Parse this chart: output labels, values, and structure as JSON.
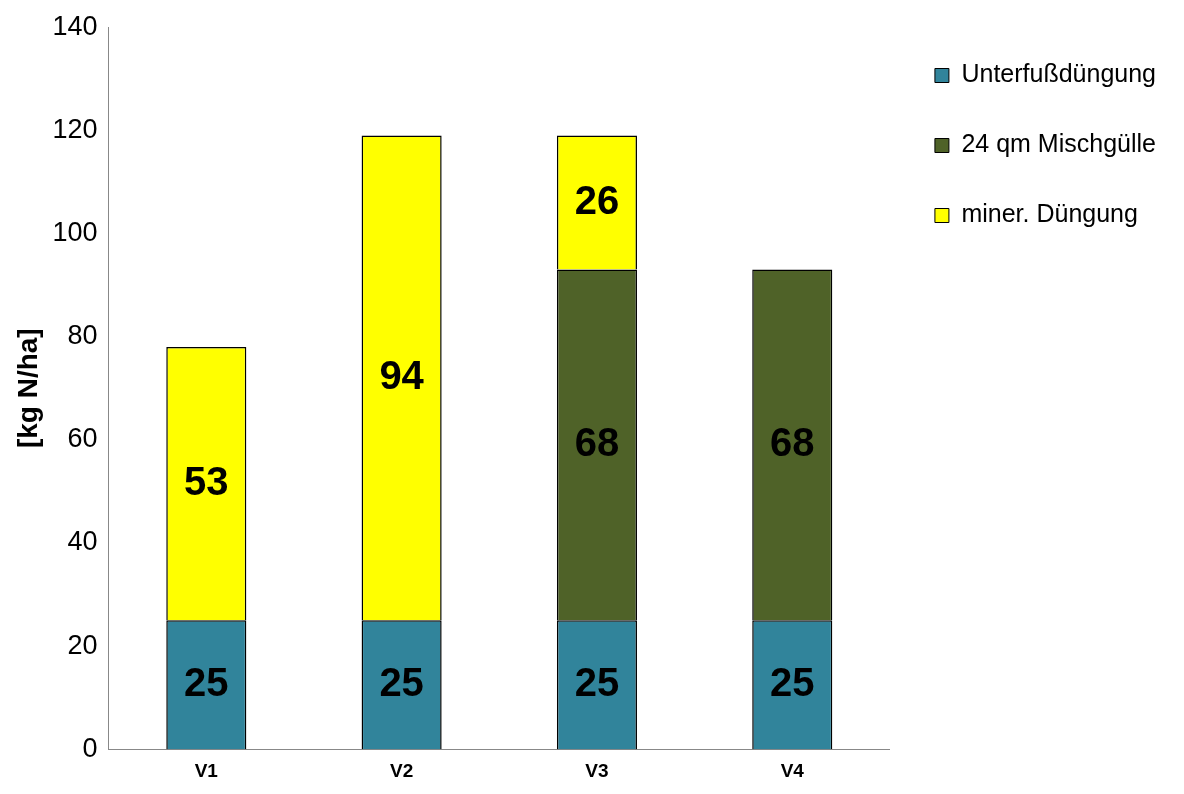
{
  "chart_data": {
    "type": "bar",
    "stacked": true,
    "ylabel": "[kg N/ha]",
    "categories": [
      "V1",
      "V2",
      "V3",
      "V4"
    ],
    "series": [
      {
        "name": "Unterfußdüngung",
        "color": "#31849b",
        "values": [
          25,
          25,
          25,
          25
        ]
      },
      {
        "name": "24 qm Mischgülle",
        "color": "#4f6228",
        "values": [
          null,
          null,
          68,
          68
        ]
      },
      {
        "name": "miner. Düngung",
        "color": "#ffff00",
        "values": [
          53,
          94,
          26,
          null
        ]
      }
    ],
    "ylim": [
      0,
      140
    ],
    "yticks": [
      0,
      20,
      40,
      60,
      80,
      100,
      120,
      140
    ],
    "grid": false,
    "legend": "top right",
    "data_labels": true
  }
}
